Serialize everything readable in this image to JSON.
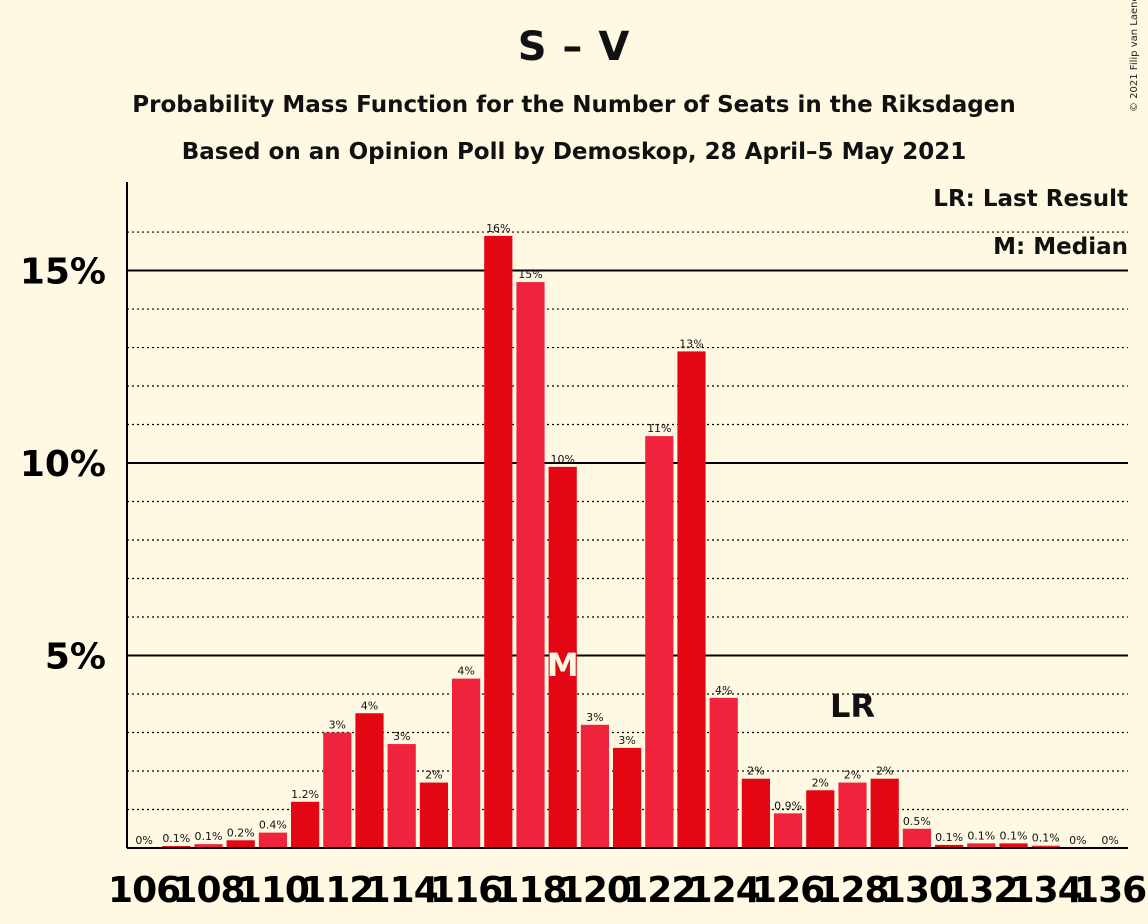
{
  "title": "S – V",
  "subtitle1": "Probability Mass Function for the Number of Seats in the Riksdagen",
  "subtitle2": "Based on an Opinion Poll by Demoskop, 28 April–5 May 2021",
  "copyright": "© 2021 Filip van Laenen",
  "legend": {
    "last_result": "LR: Last Result",
    "median": "M: Median"
  },
  "markers": {
    "median_label": "M",
    "median_seat": 119,
    "last_result_label": "LR",
    "last_result_seat": 128
  },
  "colors": {
    "background": "#FFF9E3",
    "bar_dark": "#E30613",
    "bar_light": "#EF233C",
    "axis": "#000000"
  },
  "chart_data": {
    "type": "bar",
    "seats": [
      106,
      107,
      108,
      109,
      110,
      111,
      112,
      113,
      114,
      115,
      116,
      117,
      118,
      119,
      120,
      121,
      122,
      123,
      124,
      125,
      126,
      127,
      128,
      129,
      130,
      131,
      132,
      133,
      134,
      135,
      136
    ],
    "values": [
      0,
      0.05,
      0.1,
      0.2,
      0.4,
      1.2,
      3.0,
      3.5,
      2.7,
      1.7,
      4.4,
      15.9,
      14.7,
      9.9,
      3.2,
      2.6,
      10.7,
      12.9,
      3.9,
      1.8,
      0.9,
      1.5,
      1.7,
      1.8,
      0.5,
      0.08,
      0.12,
      0.12,
      0.06,
      0,
      0
    ],
    "data_labels": [
      "0%",
      "0.1%",
      "0.1%",
      "0.2%",
      "0.4%",
      "1.2%",
      "3%",
      "4%",
      "3%",
      "2%",
      "4%",
      "16%",
      "15%",
      "10%",
      "3%",
      "3%",
      "11%",
      "13%",
      "4%",
      "2%",
      "0.9%",
      "2%",
      "2%",
      "2%",
      "0.5%",
      "0.1%",
      "0.1%",
      "0.1%",
      "0.1%",
      "0%",
      "0%"
    ],
    "x_tick_labels": [
      "106",
      "108",
      "110",
      "112",
      "114",
      "116",
      "118",
      "120",
      "122",
      "124",
      "126",
      "128",
      "130",
      "132",
      "134",
      "136"
    ],
    "y_tick_labels": [
      "5%",
      "10%",
      "15%"
    ],
    "y_ticks": [
      5,
      10,
      15
    ],
    "y_minor_gridlines": [
      1,
      2,
      3,
      4,
      6,
      7,
      8,
      9,
      11,
      12,
      13,
      14,
      16
    ],
    "ylim": [
      0,
      17.3
    ],
    "grid": true,
    "legend_position": "top-right"
  }
}
